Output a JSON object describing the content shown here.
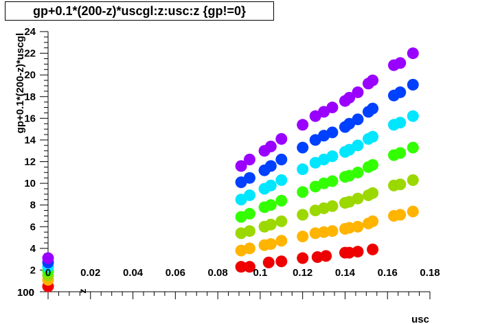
{
  "chart_data": {
    "type": "scatter",
    "title": "gp+0.1*(200-z)*uscgl:z:usc:z {gp!=0}",
    "xlabel": "usc",
    "ylabel": "gp+0.1*(200-z)*uscgl",
    "zlabel": "z",
    "xlim": [
      0,
      0.18
    ],
    "ylim": [
      0,
      24
    ],
    "x_ticks": [
      0,
      0.02,
      0.04,
      0.06,
      0.08,
      0.1,
      0.12,
      0.14,
      0.16,
      0.18
    ],
    "x_tick_labels": [
      "0",
      "0.02",
      "0.04",
      "0.06",
      "0.08",
      "0.1",
      "0.12",
      "0.14",
      "0.16",
      "0.18"
    ],
    "y_ticks": [
      2,
      4,
      6,
      8,
      10,
      12,
      14,
      16,
      18,
      20,
      22,
      24
    ],
    "y_tick_labels": [
      "2",
      "4",
      "6",
      "8",
      "10",
      "12",
      "14",
      "16",
      "18",
      "20",
      "22",
      "24"
    ],
    "z_tick_labels": [
      "0",
      "100"
    ],
    "grid": false,
    "palette": [
      "#ee0000",
      "#ffb400",
      "#9bd800",
      "#33ff00",
      "#00e6ff",
      "#0040ff",
      "#9900ff"
    ],
    "series": [
      {
        "z": 0,
        "color": "#ee0000",
        "points": [
          [
            0.0,
            0.5
          ],
          [
            0.091,
            2.3
          ],
          [
            0.095,
            2.3
          ],
          [
            0.104,
            2.7
          ],
          [
            0.11,
            2.8
          ],
          [
            0.12,
            3.1
          ],
          [
            0.127,
            3.2
          ],
          [
            0.131,
            3.3
          ],
          [
            0.14,
            3.6
          ],
          [
            0.142,
            3.6
          ],
          [
            0.146,
            3.7
          ],
          [
            0.153,
            3.9
          ]
        ]
      },
      {
        "z": 25,
        "color": "#ffb400",
        "points": [
          [
            0.0,
            1.1
          ],
          [
            0.091,
            3.8
          ],
          [
            0.095,
            4.0
          ],
          [
            0.102,
            4.3
          ],
          [
            0.105,
            4.4
          ],
          [
            0.11,
            4.7
          ],
          [
            0.12,
            5.1
          ],
          [
            0.126,
            5.4
          ],
          [
            0.13,
            5.5
          ],
          [
            0.134,
            5.6
          ],
          [
            0.14,
            5.8
          ],
          [
            0.142,
            5.9
          ],
          [
            0.146,
            6.0
          ],
          [
            0.151,
            6.3
          ],
          [
            0.153,
            6.5
          ],
          [
            0.163,
            7.0
          ],
          [
            0.166,
            7.1
          ],
          [
            0.172,
            7.4
          ]
        ]
      },
      {
        "z": 50,
        "color": "#9bd800",
        "points": [
          [
            0.0,
            1.5
          ],
          [
            0.091,
            5.4
          ],
          [
            0.095,
            5.6
          ],
          [
            0.102,
            6.0
          ],
          [
            0.105,
            6.2
          ],
          [
            0.11,
            6.5
          ],
          [
            0.12,
            7.1
          ],
          [
            0.126,
            7.5
          ],
          [
            0.13,
            7.7
          ],
          [
            0.134,
            7.9
          ],
          [
            0.14,
            8.2
          ],
          [
            0.142,
            8.3
          ],
          [
            0.146,
            8.6
          ],
          [
            0.151,
            8.9
          ],
          [
            0.153,
            9.1
          ],
          [
            0.163,
            9.8
          ],
          [
            0.166,
            9.9
          ],
          [
            0.172,
            10.3
          ]
        ]
      },
      {
        "z": 75,
        "color": "#33ff00",
        "points": [
          [
            0.0,
            1.9
          ],
          [
            0.091,
            6.9
          ],
          [
            0.095,
            7.2
          ],
          [
            0.102,
            7.8
          ],
          [
            0.105,
            8.0
          ],
          [
            0.11,
            8.4
          ],
          [
            0.12,
            9.2
          ],
          [
            0.126,
            9.7
          ],
          [
            0.13,
            10.0
          ],
          [
            0.134,
            10.2
          ],
          [
            0.14,
            10.6
          ],
          [
            0.142,
            10.7
          ],
          [
            0.146,
            11.0
          ],
          [
            0.151,
            11.5
          ],
          [
            0.153,
            11.7
          ],
          [
            0.163,
            12.6
          ],
          [
            0.166,
            12.8
          ],
          [
            0.172,
            13.3
          ]
        ]
      },
      {
        "z": 100,
        "color": "#00e6ff",
        "points": [
          [
            0.0,
            2.3
          ],
          [
            0.091,
            8.5
          ],
          [
            0.095,
            8.9
          ],
          [
            0.102,
            9.5
          ],
          [
            0.105,
            9.8
          ],
          [
            0.11,
            10.3
          ],
          [
            0.12,
            11.3
          ],
          [
            0.126,
            11.9
          ],
          [
            0.13,
            12.2
          ],
          [
            0.134,
            12.5
          ],
          [
            0.14,
            12.9
          ],
          [
            0.142,
            13.1
          ],
          [
            0.146,
            13.5
          ],
          [
            0.151,
            14.1
          ],
          [
            0.153,
            14.3
          ],
          [
            0.163,
            15.4
          ],
          [
            0.166,
            15.6
          ],
          [
            0.172,
            16.2
          ]
        ]
      },
      {
        "z": 125,
        "color": "#0040ff",
        "points": [
          [
            0.0,
            2.7
          ],
          [
            0.091,
            10.1
          ],
          [
            0.095,
            10.5
          ],
          [
            0.102,
            11.2
          ],
          [
            0.105,
            11.6
          ],
          [
            0.11,
            12.2
          ],
          [
            0.12,
            13.3
          ],
          [
            0.126,
            14.0
          ],
          [
            0.13,
            14.4
          ],
          [
            0.134,
            14.7
          ],
          [
            0.14,
            15.2
          ],
          [
            0.142,
            15.5
          ],
          [
            0.146,
            15.9
          ],
          [
            0.151,
            16.6
          ],
          [
            0.153,
            16.9
          ],
          [
            0.163,
            18.1
          ],
          [
            0.166,
            18.4
          ],
          [
            0.172,
            19.1
          ]
        ]
      },
      {
        "z": 150,
        "color": "#9900ff",
        "points": [
          [
            0.0,
            3.1
          ],
          [
            0.091,
            11.6
          ],
          [
            0.095,
            12.2
          ],
          [
            0.102,
            13.0
          ],
          [
            0.105,
            13.4
          ],
          [
            0.11,
            14.1
          ],
          [
            0.12,
            15.4
          ],
          [
            0.126,
            16.2
          ],
          [
            0.13,
            16.6
          ],
          [
            0.134,
            17.0
          ],
          [
            0.14,
            17.6
          ],
          [
            0.142,
            17.9
          ],
          [
            0.146,
            18.4
          ],
          [
            0.151,
            19.2
          ],
          [
            0.153,
            19.5
          ],
          [
            0.163,
            20.9
          ],
          [
            0.166,
            21.1
          ],
          [
            0.172,
            22.0
          ]
        ]
      }
    ]
  }
}
